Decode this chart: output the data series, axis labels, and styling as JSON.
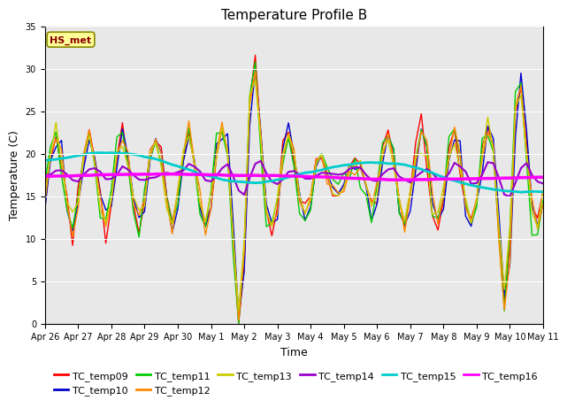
{
  "title": "Temperature Profile B",
  "xlabel": "Time",
  "ylabel": "Temperature (C)",
  "ylim": [
    0,
    35
  ],
  "yticks": [
    0,
    5,
    10,
    15,
    20,
    25,
    30,
    35
  ],
  "x_labels": [
    "Apr 26",
    "Apr 27",
    "Apr 28",
    "Apr 29",
    "Apr 30",
    "May 1",
    "May 2",
    "May 3",
    "May 4",
    "May 5",
    "May 6",
    "May 7",
    "May 8",
    "May 9",
    "May 10",
    "May 11"
  ],
  "annotation_text": "HS_met",
  "annotation_color": "#8B0000",
  "annotation_bg": "#FFFF99",
  "series_colors": {
    "TC_temp09": "#FF0000",
    "TC_temp10": "#0000CC",
    "TC_temp11": "#00CC00",
    "TC_temp12": "#FF8800",
    "TC_temp13": "#CCCC00",
    "TC_temp14": "#9900CC",
    "TC_temp15": "#00CCCC",
    "TC_temp16": "#FF00FF"
  },
  "background_color": "#E8E8E8",
  "figure_bg": "#FFFFFF",
  "title_fontsize": 11,
  "axis_label_fontsize": 9,
  "tick_fontsize": 7,
  "legend_fontsize": 8
}
